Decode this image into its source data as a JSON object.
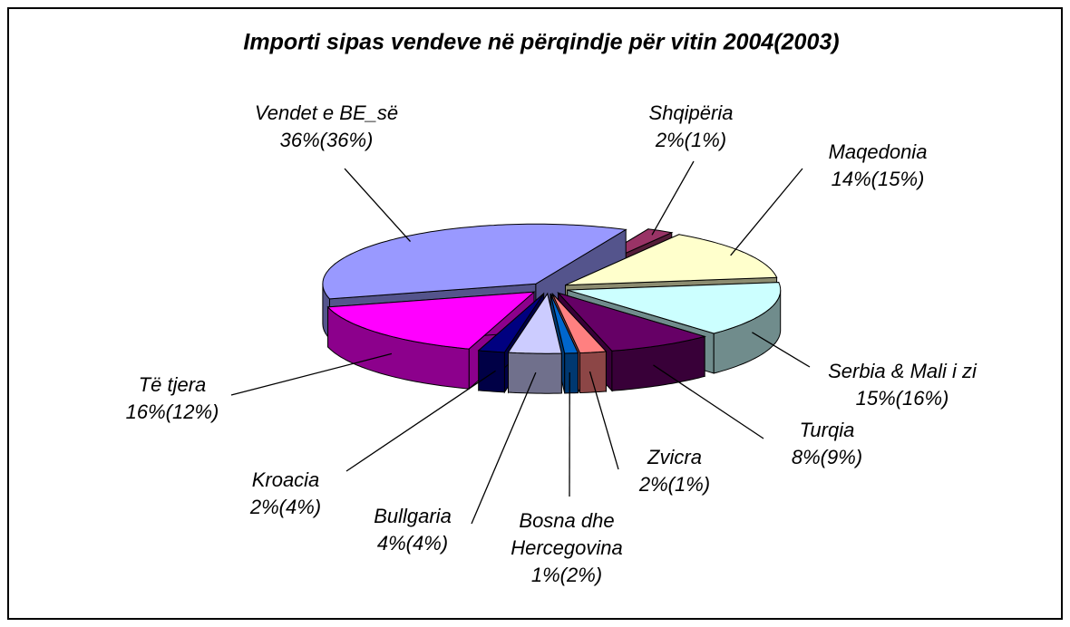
{
  "chart_data": {
    "type": "pie",
    "title": "Importi sipas vendeve në përqindje për vitin 2004(2003)",
    "categories": [
      "Shqipëria",
      "Maqedonia",
      "Serbia & Mali i zi",
      "Turqia",
      "Zvicra",
      "Bosna dhe Hercegovina",
      "Bullgaria",
      "Kroacia",
      "Të tjera",
      "Vendet e BE_së"
    ],
    "values": [
      2,
      14,
      15,
      8,
      2,
      1,
      4,
      2,
      16,
      36
    ],
    "values_2003": [
      1,
      15,
      16,
      9,
      1,
      2,
      4,
      4,
      12,
      36
    ],
    "value_labels": [
      "2%(1%)",
      "14%(15%)",
      "15%(16%)",
      "8%(9%)",
      "2%(1%)",
      "1%(2%)",
      "4%(4%)",
      "2%(4%)",
      "16%(12%)",
      "36%(36%)"
    ],
    "colors": [
      "#993366",
      "#ffffcc",
      "#ccffff",
      "#660066",
      "#ff8080",
      "#0066cc",
      "#ccccff",
      "#000080",
      "#ff00ff",
      "#9999ff"
    ]
  }
}
